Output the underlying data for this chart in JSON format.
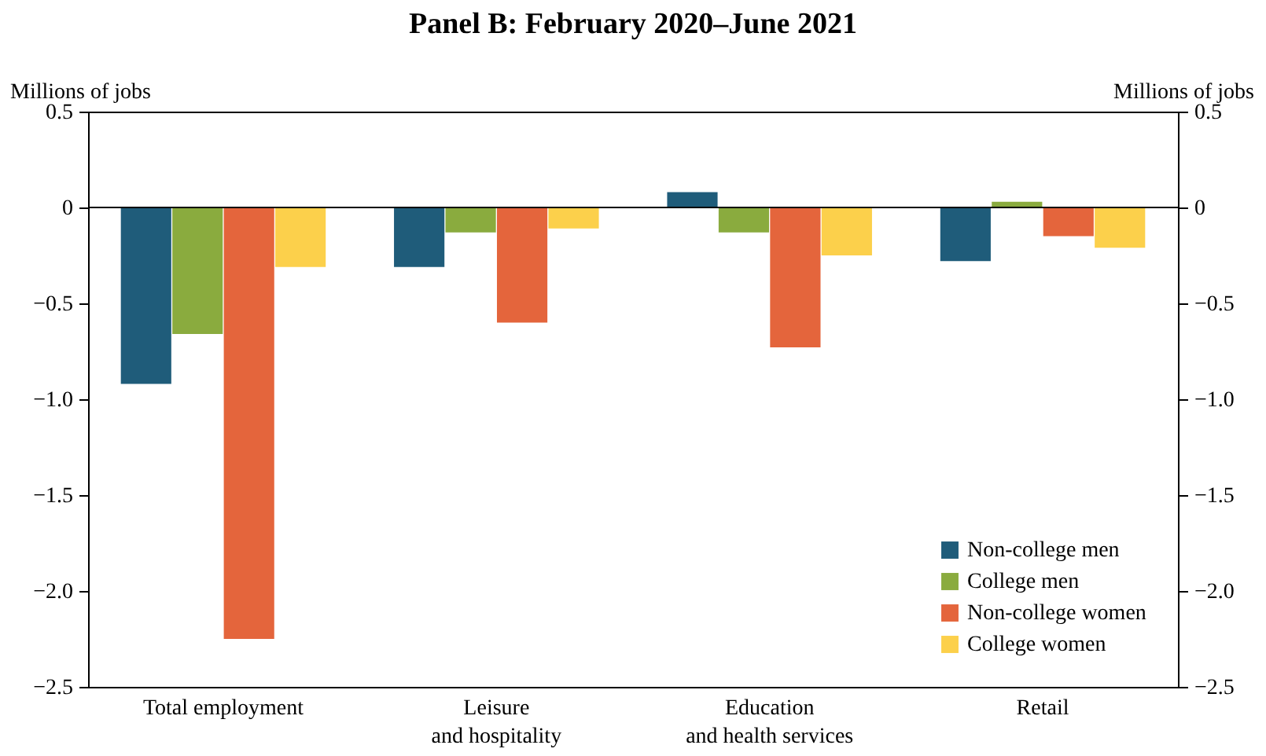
{
  "chart_data": {
    "type": "bar",
    "title": "Panel B: February 2020–June 2021",
    "ylabel": "Millions of jobs",
    "y2label": "Millions of jobs",
    "categories": [
      "Total employment",
      "Leisure\nand hospitality",
      "Education\nand health services",
      "Retail"
    ],
    "series": [
      {
        "name": "Non-college men",
        "color": "#1f5c7a",
        "values": [
          -0.92,
          -0.31,
          0.08,
          -0.28
        ]
      },
      {
        "name": "College men",
        "color": "#8aab3e",
        "values": [
          -0.66,
          -0.13,
          -0.13,
          0.03
        ]
      },
      {
        "name": "Non-college women",
        "color": "#e4653c",
        "values": [
          -2.25,
          -0.6,
          -0.73,
          -0.15
        ]
      },
      {
        "name": "College women",
        "color": "#fcd04b",
        "values": [
          -0.31,
          -0.11,
          -0.25,
          -0.21
        ]
      }
    ],
    "ylim": [
      -2.5,
      0.5
    ],
    "yticks": [
      {
        "value": -2.5,
        "label": "−2.5"
      },
      {
        "value": -2,
        "label": "−2.0"
      },
      {
        "value": -1.5,
        "label": "−1.5"
      },
      {
        "value": -1,
        "label": "−1.0"
      },
      {
        "value": -0.5,
        "label": "−0.5"
      },
      0,
      0.5
    ],
    "y2lim": [
      -2.5,
      0.5
    ],
    "y2ticks": [
      {
        "value": -2.5,
        "label": "−2.5"
      },
      {
        "value": -2,
        "label": "−2.0"
      },
      {
        "value": -1.5,
        "label": "−1.5"
      },
      {
        "value": -1,
        "label": "−1.0"
      },
      {
        "value": -0.5,
        "label": "−0.5"
      },
      0,
      0.5
    ],
    "ref_lines": [
      {
        "axis": "y",
        "value": 0
      }
    ],
    "grid": false,
    "legend": "bottom right"
  }
}
